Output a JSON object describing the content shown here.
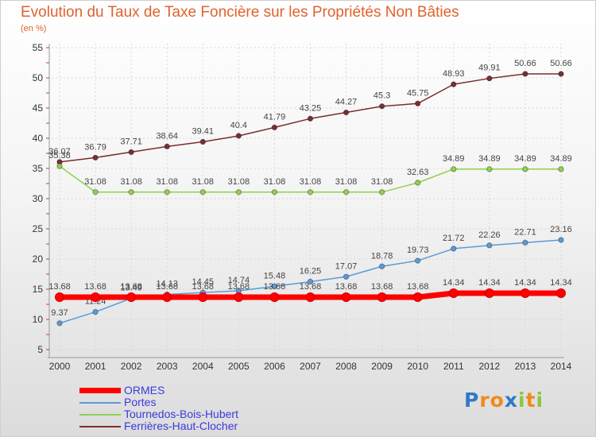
{
  "title": "Evolution du Taux de Taxe Foncière sur les Propriétés Non Bâties",
  "unit_label": "(en %)",
  "logo": {
    "text": "Proxiti",
    "letters": [
      "P",
      "r",
      "o",
      "x",
      "i",
      "t",
      "i"
    ],
    "colors": [
      "#2f79c8",
      "#f08a1d",
      "#f08a1d",
      "#2f79c8",
      "#8cc63e",
      "#f08a1d",
      "#8cc63e"
    ]
  },
  "chart_data": {
    "type": "line",
    "x": [
      "2000",
      "2001",
      "2002",
      "2003",
      "2004",
      "2005",
      "2006",
      "2007",
      "2008",
      "2009",
      "2010",
      "2011",
      "2012",
      "2013",
      "2014"
    ],
    "ylim": [
      5,
      55
    ],
    "yticks": [
      "5",
      "10",
      "15",
      "20",
      "25",
      "30",
      "35",
      "40",
      "45",
      "50",
      "55"
    ],
    "grid": true,
    "legend_position": "bottom-left",
    "series": [
      {
        "name": "ORMES",
        "color": "#ff0000",
        "values": [
          13.68,
          13.68,
          13.68,
          13.68,
          13.68,
          13.68,
          13.68,
          13.68,
          13.68,
          13.68,
          13.68,
          14.34,
          14.34,
          14.34,
          14.34
        ],
        "labels": [
          "13.68",
          "13.68",
          "13.68",
          "13.68",
          "13.68",
          "13.68",
          "13.68",
          "13.68",
          "13.68",
          "13.68",
          "13.68",
          "14.34",
          "14.34",
          "14.34",
          "14.34"
        ]
      },
      {
        "name": "Portes",
        "color": "#5b9bd5",
        "values": [
          9.37,
          11.24,
          13.49,
          14.13,
          14.45,
          14.74,
          15.48,
          16.25,
          17.07,
          18.78,
          19.73,
          21.72,
          22.26,
          22.71,
          23.16
        ],
        "labels": [
          "9.37",
          "11.24",
          "13.49",
          "14.13",
          "14.45",
          "14.74",
          "15.48",
          "16.25",
          "17.07",
          "18.78",
          "19.73",
          "21.72",
          "22.26",
          "22.71",
          "23.16"
        ]
      },
      {
        "name": "Tournedos-Bois-Hubert",
        "color": "#8fd14f",
        "values": [
          35.38,
          31.08,
          31.08,
          31.08,
          31.08,
          31.08,
          31.08,
          31.08,
          31.08,
          31.08,
          32.63,
          34.89,
          34.89,
          34.89,
          34.89
        ],
        "labels": [
          "35.38",
          "31.08",
          "31.08",
          "31.08",
          "31.08",
          "31.08",
          "31.08",
          "31.08",
          "31.08",
          "31.08",
          "32.63",
          "34.89",
          "34.89",
          "34.89",
          "34.89"
        ]
      },
      {
        "name": "Ferrières-Haut-Clocher",
        "color": "#7b2e2e",
        "values": [
          36.07,
          36.79,
          37.71,
          38.64,
          39.41,
          40.4,
          41.79,
          43.25,
          44.27,
          45.3,
          45.75,
          48.93,
          49.91,
          50.66,
          50.66
        ],
        "labels": [
          "36.07",
          "36.79",
          "37.71",
          "38.64",
          "39.41",
          "40.4",
          "41.79",
          "43.25",
          "44.27",
          "45.3",
          "45.75",
          "48.93",
          "49.91",
          "50.66",
          "50.66"
        ]
      }
    ]
  }
}
